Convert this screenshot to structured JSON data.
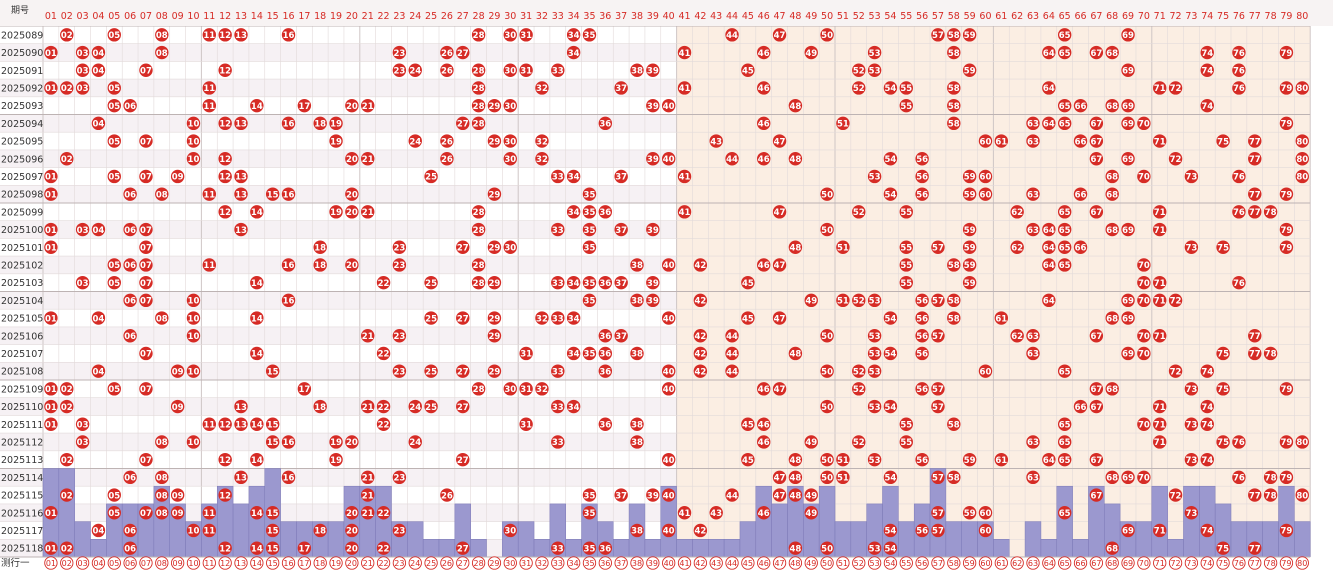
{
  "header": {
    "issue_label": "期号"
  },
  "footer": {
    "label": "测行一"
  },
  "colors": {
    "ball": "#d62b25",
    "ball_text": "#ffffff",
    "bar": "#9b98cf",
    "bar_stroke": "#7b78b6",
    "header_text": "#d62b25",
    "issue_text": "#333333",
    "grid": "#e2dada",
    "bg_left": "#ffffff",
    "bg_right": "#fbeee3",
    "stripe": "#f6f1f4"
  },
  "chart_data": {
    "type": "table",
    "columns": [
      "01",
      "02",
      "03",
      "04",
      "05",
      "06",
      "07",
      "08",
      "09",
      "10",
      "11",
      "12",
      "13",
      "14",
      "15",
      "16",
      "17",
      "18",
      "19",
      "20",
      "21",
      "22",
      "23",
      "24",
      "25",
      "26",
      "27",
      "28",
      "29",
      "30",
      "31",
      "32",
      "33",
      "34",
      "35",
      "36",
      "37",
      "38",
      "39",
      "40",
      "41",
      "42",
      "43",
      "44",
      "45",
      "46",
      "47",
      "48",
      "49",
      "50",
      "51",
      "52",
      "53",
      "54",
      "55",
      "56",
      "57",
      "58",
      "59",
      "60",
      "61",
      "62",
      "63",
      "64",
      "65",
      "66",
      "67",
      "68",
      "69",
      "70",
      "71",
      "72",
      "73",
      "74",
      "75",
      "76",
      "77",
      "78",
      "79",
      "80"
    ],
    "issues": [
      {
        "issue": "2025089",
        "numbers": [
          2,
          5,
          8,
          11,
          12,
          13,
          16,
          28,
          30,
          31,
          34,
          35,
          44,
          47,
          50,
          57,
          58,
          59,
          65,
          69
        ]
      },
      {
        "issue": "2025090",
        "numbers": [
          1,
          3,
          4,
          8,
          23,
          26,
          27,
          34,
          41,
          46,
          49,
          53,
          58,
          64,
          65,
          67,
          68,
          74,
          76,
          79
        ]
      },
      {
        "issue": "2025091",
        "numbers": [
          3,
          4,
          7,
          12,
          23,
          24,
          26,
          28,
          30,
          31,
          33,
          38,
          39,
          45,
          52,
          53,
          59,
          69,
          74,
          76
        ]
      },
      {
        "issue": "2025092",
        "numbers": [
          1,
          2,
          3,
          5,
          11,
          28,
          32,
          37,
          41,
          46,
          52,
          54,
          55,
          58,
          64,
          71,
          72,
          76,
          79,
          80
        ]
      },
      {
        "issue": "2025093",
        "numbers": [
          5,
          6,
          11,
          14,
          17,
          20,
          21,
          28,
          29,
          30,
          39,
          40,
          48,
          55,
          58,
          65,
          66,
          68,
          69,
          74
        ]
      },
      {
        "issue": "2025094",
        "numbers": [
          4,
          10,
          12,
          13,
          16,
          18,
          19,
          27,
          28,
          36,
          46,
          51,
          58,
          63,
          64,
          65,
          67,
          69,
          70,
          79
        ]
      },
      {
        "issue": "2025095",
        "numbers": [
          5,
          7,
          10,
          19,
          24,
          26,
          29,
          30,
          32,
          43,
          47,
          60,
          61,
          63,
          66,
          67,
          71,
          75,
          77,
          80
        ]
      },
      {
        "issue": "2025096",
        "numbers": [
          2,
          10,
          12,
          20,
          21,
          26,
          30,
          32,
          39,
          40,
          44,
          46,
          48,
          54,
          56,
          67,
          69,
          72,
          77,
          80
        ]
      },
      {
        "issue": "2025097",
        "numbers": [
          1,
          5,
          7,
          9,
          12,
          13,
          25,
          33,
          34,
          37,
          41,
          53,
          56,
          59,
          60,
          68,
          70,
          73,
          76,
          80
        ]
      },
      {
        "issue": "2025098",
        "numbers": [
          1,
          6,
          8,
          11,
          13,
          15,
          16,
          20,
          29,
          35,
          50,
          54,
          56,
          59,
          60,
          63,
          66,
          68,
          77,
          79
        ]
      },
      {
        "issue": "2025099",
        "numbers": [
          12,
          14,
          19,
          20,
          21,
          28,
          34,
          35,
          36,
          41,
          47,
          52,
          55,
          62,
          65,
          67,
          71,
          76,
          77,
          78
        ]
      },
      {
        "issue": "2025100",
        "numbers": [
          1,
          3,
          4,
          6,
          7,
          13,
          28,
          33,
          35,
          37,
          39,
          50,
          59,
          63,
          64,
          65,
          68,
          69,
          71,
          79
        ]
      },
      {
        "issue": "2025101",
        "numbers": [
          1,
          7,
          18,
          23,
          27,
          29,
          30,
          35,
          48,
          51,
          55,
          57,
          59,
          62,
          64,
          65,
          66,
          73,
          75,
          79
        ]
      },
      {
        "issue": "2025102",
        "numbers": [
          5,
          6,
          7,
          11,
          16,
          18,
          20,
          23,
          28,
          38,
          40,
          42,
          46,
          47,
          55,
          58,
          59,
          64,
          65,
          70
        ]
      },
      {
        "issue": "2025103",
        "numbers": [
          3,
          5,
          7,
          14,
          22,
          25,
          28,
          29,
          33,
          34,
          35,
          36,
          37,
          39,
          45,
          55,
          59,
          70,
          71,
          76
        ]
      },
      {
        "issue": "2025104",
        "numbers": [
          6,
          7,
          10,
          16,
          35,
          38,
          39,
          42,
          49,
          51,
          52,
          53,
          56,
          57,
          58,
          64,
          69,
          70,
          71,
          72
        ]
      },
      {
        "issue": "2025105",
        "numbers": [
          1,
          4,
          8,
          10,
          14,
          25,
          27,
          29,
          32,
          33,
          34,
          40,
          45,
          47,
          54,
          56,
          58,
          61,
          68,
          69
        ]
      },
      {
        "issue": "2025106",
        "numbers": [
          6,
          10,
          21,
          23,
          29,
          36,
          37,
          42,
          44,
          50,
          53,
          56,
          57,
          62,
          63,
          67,
          70,
          71,
          77
        ]
      },
      {
        "issue": "2025107",
        "numbers": [
          7,
          14,
          22,
          31,
          34,
          35,
          36,
          38,
          42,
          44,
          48,
          53,
          54,
          56,
          63,
          69,
          70,
          75,
          77,
          78
        ]
      },
      {
        "issue": "2025108",
        "numbers": [
          4,
          9,
          10,
          15,
          23,
          25,
          27,
          29,
          33,
          36,
          40,
          42,
          44,
          50,
          52,
          53,
          60,
          65,
          72,
          74
        ]
      },
      {
        "issue": "2025109",
        "numbers": [
          1,
          2,
          5,
          7,
          17,
          28,
          30,
          31,
          32,
          40,
          46,
          47,
          52,
          56,
          57,
          67,
          68,
          73,
          75,
          79
        ]
      },
      {
        "issue": "2025110",
        "numbers": [
          1,
          2,
          9,
          13,
          18,
          21,
          22,
          24,
          25,
          27,
          33,
          34,
          50,
          53,
          54,
          57,
          66,
          67,
          71,
          74
        ]
      },
      {
        "issue": "2025111",
        "numbers": [
          1,
          3,
          11,
          12,
          13,
          14,
          15,
          22,
          31,
          36,
          38,
          45,
          46,
          55,
          58,
          65,
          70,
          71,
          73,
          74
        ]
      },
      {
        "issue": "2025112",
        "numbers": [
          3,
          8,
          10,
          15,
          16,
          19,
          20,
          24,
          33,
          38,
          46,
          49,
          52,
          55,
          63,
          65,
          71,
          75,
          76,
          79,
          80
        ]
      },
      {
        "issue": "2025113",
        "numbers": [
          2,
          7,
          12,
          14,
          19,
          27,
          40,
          45,
          48,
          50,
          51,
          53,
          56,
          59,
          61,
          64,
          65,
          67,
          73,
          74
        ]
      },
      {
        "issue": "2025114",
        "numbers": [
          6,
          8,
          13,
          16,
          21,
          23,
          47,
          48,
          50,
          51,
          54,
          57,
          58,
          63,
          68,
          69,
          70,
          76,
          78,
          79
        ]
      },
      {
        "issue": "2025115",
        "numbers": [
          2,
          5,
          8,
          9,
          12,
          21,
          26,
          35,
          37,
          39,
          40,
          44,
          47,
          48,
          49,
          67,
          72,
          77,
          78,
          80
        ]
      },
      {
        "issue": "2025116",
        "numbers": [
          1,
          5,
          7,
          8,
          9,
          11,
          14,
          15,
          20,
          21,
          22,
          35,
          41,
          43,
          46,
          49,
          57,
          59,
          60,
          65,
          73
        ]
      },
      {
        "issue": "2025117",
        "numbers": [
          4,
          6,
          10,
          11,
          15,
          18,
          20,
          23,
          30,
          38,
          40,
          42,
          54,
          56,
          57,
          60,
          69,
          71,
          74,
          79
        ]
      },
      {
        "issue": "2025118",
        "numbers": [
          1,
          2,
          6,
          12,
          14,
          15,
          17,
          20,
          22,
          27,
          33,
          35,
          36,
          48,
          50,
          53,
          54,
          68,
          75,
          77
        ]
      }
    ]
  }
}
